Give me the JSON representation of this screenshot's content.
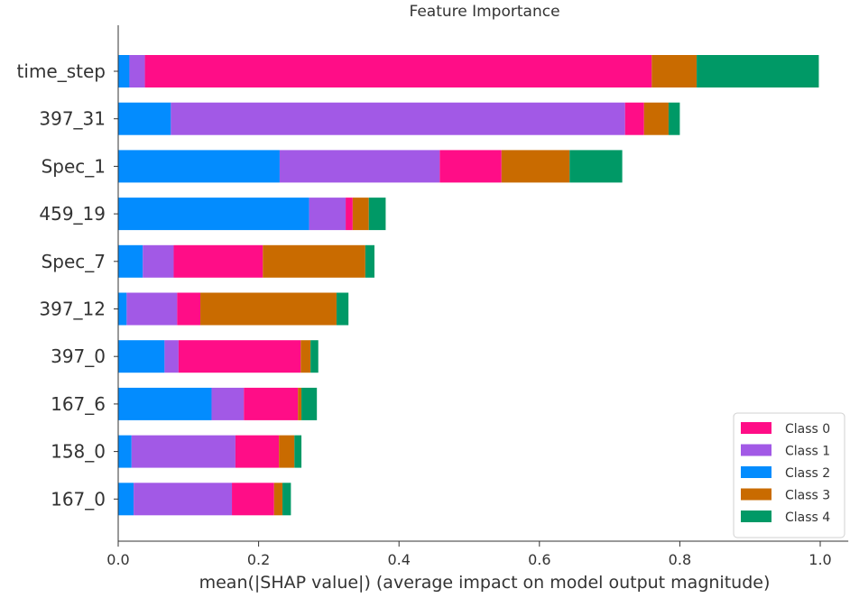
{
  "chart_data": {
    "type": "bar",
    "orientation": "horizontal",
    "stacked": true,
    "title": "Feature Importance",
    "xlabel": "mean(|SHAP value|) (average impact on model output magnitude)",
    "ylabel": "",
    "xlim": [
      0,
      1.04
    ],
    "xticks": [
      0.0,
      0.2,
      0.4,
      0.6,
      0.8,
      1.0
    ],
    "xtick_labels": [
      "0.0",
      "0.2",
      "0.4",
      "0.6",
      "0.8",
      "1.0"
    ],
    "grid": false,
    "legend_position": "bottom-right",
    "categories": [
      "time_step",
      "397_31",
      "Spec_1",
      "459_19",
      "Spec_7",
      "397_12",
      "397_0",
      "167_6",
      "158_0",
      "167_0"
    ],
    "stack_order": [
      "Class 2",
      "Class 1",
      "Class 0",
      "Class 3",
      "Class 4"
    ],
    "series": [
      {
        "name": "Class 0",
        "color": "#ff0d87",
        "values": [
          0.722,
          0.027,
          0.088,
          0.01,
          0.127,
          0.033,
          0.174,
          0.077,
          0.062,
          0.06
        ]
      },
      {
        "name": "Class 1",
        "color": "#a259e6",
        "values": [
          0.022,
          0.647,
          0.228,
          0.052,
          0.044,
          0.072,
          0.02,
          0.046,
          0.148,
          0.14
        ]
      },
      {
        "name": "Class 2",
        "color": "#038cfe",
        "values": [
          0.016,
          0.075,
          0.23,
          0.272,
          0.035,
          0.012,
          0.066,
          0.133,
          0.019,
          0.022
        ]
      },
      {
        "name": "Class 3",
        "color": "#c96b00",
        "values": [
          0.064,
          0.035,
          0.097,
          0.023,
          0.146,
          0.194,
          0.014,
          0.005,
          0.022,
          0.012
        ]
      },
      {
        "name": "Class 4",
        "color": "#009966",
        "values": [
          0.174,
          0.016,
          0.075,
          0.024,
          0.013,
          0.017,
          0.011,
          0.022,
          0.01,
          0.012
        ]
      }
    ]
  }
}
